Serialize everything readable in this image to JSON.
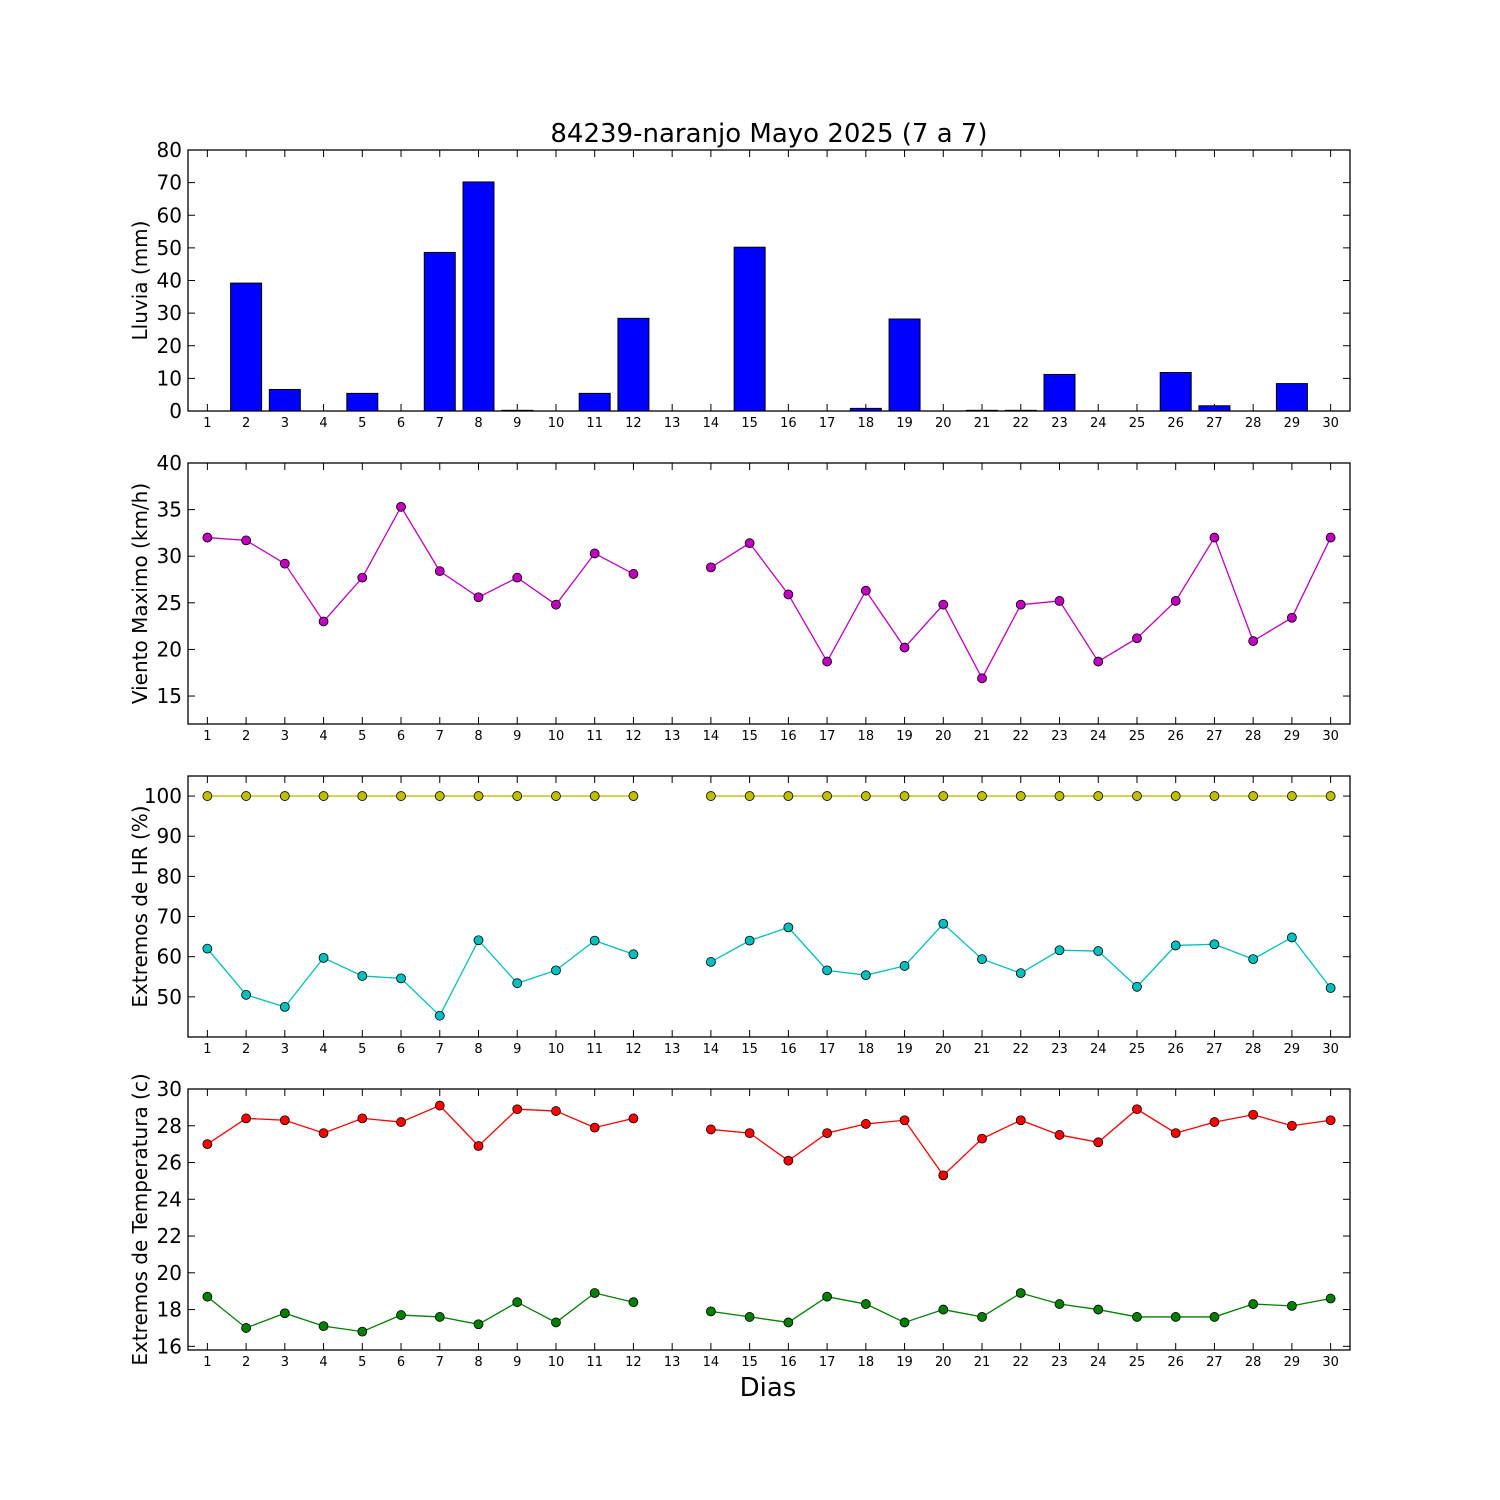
{
  "figure": {
    "title": "84239-naranjo Mayo 2025  (7 a 7)",
    "xlabel": "Dias"
  },
  "chart_data": [
    {
      "type": "bar",
      "ylabel": "Lluvia (mm)",
      "ylim": [
        0,
        80
      ],
      "yticks": [
        0,
        10,
        20,
        30,
        40,
        50,
        60,
        70,
        80
      ],
      "categories": [
        1,
        2,
        3,
        4,
        5,
        6,
        7,
        8,
        9,
        10,
        11,
        12,
        13,
        14,
        15,
        16,
        17,
        18,
        19,
        20,
        21,
        22,
        23,
        24,
        25,
        26,
        27,
        28,
        29,
        30
      ],
      "series": [
        {
          "color": "#0000ff",
          "values": [
            0,
            39.2,
            6.6,
            0,
            5.4,
            0,
            48.6,
            70.2,
            0.2,
            0,
            5.4,
            28.4,
            0,
            0,
            50.2,
            0,
            0,
            0.8,
            28.2,
            0,
            0.2,
            0.2,
            11.2,
            0,
            0,
            11.8,
            1.6,
            0,
            8.4,
            0
          ]
        }
      ]
    },
    {
      "type": "line",
      "ylabel": "Viento Maximo (km/h)",
      "ylim": [
        12,
        40
      ],
      "yticks": [
        15,
        20,
        25,
        30,
        35,
        40
      ],
      "x": [
        1,
        2,
        3,
        4,
        5,
        6,
        7,
        8,
        9,
        10,
        11,
        12,
        13,
        14,
        15,
        16,
        17,
        18,
        19,
        20,
        21,
        22,
        23,
        24,
        25,
        26,
        27,
        28,
        29,
        30
      ],
      "series": [
        {
          "color": "#bf00bf",
          "values": [
            32.0,
            31.7,
            29.2,
            23.0,
            27.7,
            35.3,
            28.4,
            25.6,
            27.7,
            24.8,
            30.3,
            28.1,
            null,
            28.8,
            31.4,
            25.9,
            18.7,
            26.3,
            20.2,
            24.8,
            16.9,
            24.8,
            25.2,
            18.7,
            21.2,
            25.2,
            32.0,
            20.9,
            23.4,
            32.0
          ]
        }
      ]
    },
    {
      "type": "line",
      "ylabel": "Extremos de HR (%)",
      "ylim": [
        40,
        105
      ],
      "yticks": [
        50,
        60,
        70,
        80,
        90,
        100
      ],
      "x": [
        1,
        2,
        3,
        4,
        5,
        6,
        7,
        8,
        9,
        10,
        11,
        12,
        13,
        14,
        15,
        16,
        17,
        18,
        19,
        20,
        21,
        22,
        23,
        24,
        25,
        26,
        27,
        28,
        29,
        30
      ],
      "series": [
        {
          "color": "#bfbf00",
          "values": [
            100,
            100,
            100,
            100,
            100,
            100,
            100,
            100,
            100,
            100,
            100,
            100,
            null,
            100,
            100,
            100,
            100,
            100,
            100,
            100,
            100,
            100,
            100,
            100,
            100,
            100,
            100,
            100,
            100,
            100
          ]
        },
        {
          "color": "#00bfbf",
          "values": [
            62,
            50.5,
            47.5,
            59.7,
            55.2,
            54.6,
            45.3,
            64.1,
            53.4,
            56.6,
            64.0,
            60.6,
            null,
            58.7,
            64.0,
            67.3,
            56.6,
            55.4,
            57.7,
            68.2,
            59.4,
            55.9,
            61.6,
            61.4,
            52.5,
            62.8,
            63.1,
            59.4,
            64.8,
            52.2
          ]
        }
      ]
    },
    {
      "type": "line",
      "ylabel": "Extremos de Temperatura (c)",
      "ylim": [
        15.8,
        30
      ],
      "yticks": [
        16,
        18,
        20,
        22,
        24,
        26,
        28,
        30
      ],
      "x": [
        1,
        2,
        3,
        4,
        5,
        6,
        7,
        8,
        9,
        10,
        11,
        12,
        13,
        14,
        15,
        16,
        17,
        18,
        19,
        20,
        21,
        22,
        23,
        24,
        25,
        26,
        27,
        28,
        29,
        30
      ],
      "series": [
        {
          "color": "#ff0000",
          "values": [
            27.0,
            28.4,
            28.3,
            27.6,
            28.4,
            28.2,
            29.1,
            26.9,
            28.9,
            28.8,
            27.9,
            28.4,
            null,
            27.8,
            27.6,
            26.1,
            27.6,
            28.1,
            28.3,
            25.3,
            27.3,
            28.3,
            27.5,
            27.1,
            28.9,
            27.6,
            28.2,
            28.6,
            28.0,
            28.3
          ]
        },
        {
          "color": "#007f00",
          "values": [
            18.7,
            17.0,
            17.8,
            17.1,
            16.8,
            17.7,
            17.6,
            17.2,
            18.4,
            17.3,
            18.9,
            18.4,
            null,
            17.9,
            17.6,
            17.3,
            18.7,
            18.3,
            17.3,
            18.0,
            17.6,
            18.9,
            18.3,
            18.0,
            17.6,
            17.6,
            17.6,
            18.3,
            18.2,
            18.6
          ]
        }
      ]
    }
  ]
}
